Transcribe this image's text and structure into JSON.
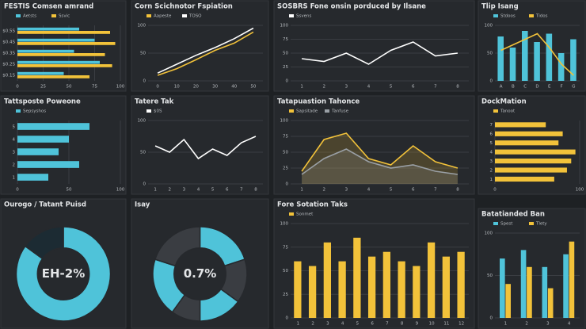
{
  "chart_data": [
    {
      "type": "hbar",
      "title": "FESTIS Comsen amrand",
      "categories": [
        "$0.5S",
        "$0.4S",
        "$0.3S",
        "$0.2S",
        "$0.1S"
      ],
      "series": [
        {
          "name": "Aetsts",
          "color": "#4fc3d9",
          "values": [
            60,
            75,
            55,
            80,
            45
          ]
        },
        {
          "name": "Ssvic",
          "color": "#f2c23a",
          "values": [
            90,
            95,
            85,
            92,
            70
          ]
        }
      ],
      "xlim": [
        0,
        100
      ],
      "xticks": [
        0,
        25,
        50,
        75,
        100
      ]
    },
    {
      "type": "line",
      "title": "Corn Scichnotor Fspiation",
      "categories": [
        "0",
        "10",
        "20",
        "30",
        "40",
        "50"
      ],
      "series": [
        {
          "name": "Aapeste",
          "color": "#f2c23a",
          "values": [
            10,
            22,
            38,
            55,
            68,
            88
          ]
        },
        {
          "name": "TOSO",
          "color": "#ffffff",
          "values": [
            14,
            30,
            46,
            60,
            76,
            95
          ]
        }
      ],
      "ylim": [
        0,
        100
      ],
      "yticks": [
        0,
        50,
        100
      ]
    },
    {
      "type": "line",
      "title": "SOSBRS Fone onsin porduced by Ilsane",
      "categories": [
        "1",
        "2",
        "3",
        "4",
        "5",
        "6",
        "7",
        "8"
      ],
      "series": [
        {
          "name": "Ssvens",
          "color": "#ffffff",
          "values": [
            40,
            35,
            50,
            30,
            55,
            70,
            45,
            50
          ]
        }
      ],
      "ylim": [
        0,
        100
      ],
      "yticks": [
        0,
        25,
        50,
        75,
        100
      ]
    },
    {
      "type": "bar",
      "title": "Tlip Isang",
      "categories": [
        "A",
        "B",
        "C",
        "D",
        "E",
        "F",
        "G"
      ],
      "series": [
        {
          "name": "Stdoos",
          "color": "#4fc3d9",
          "values": [
            80,
            60,
            90,
            70,
            85,
            50,
            75
          ]
        },
        {
          "name": "Tidos",
          "color": "#f2c23a",
          "style": "line",
          "values": [
            55,
            65,
            75,
            85,
            60,
            30,
            10
          ]
        }
      ],
      "ylim": [
        0,
        100
      ],
      "yticks": [
        0,
        50,
        100
      ]
    },
    {
      "type": "hbar",
      "title": "Tattsposte Poweone",
      "categories": [
        "5",
        "4",
        "3",
        "2",
        "1"
      ],
      "series": [
        {
          "name": "Sepsyshos",
          "color": "#4fc3d9",
          "values": [
            70,
            50,
            40,
            60,
            30
          ]
        }
      ],
      "xlim": [
        0,
        100
      ],
      "xticks": [
        0,
        50,
        100
      ]
    },
    {
      "type": "line",
      "title": "Tatere Tak",
      "categories": [
        "1",
        "2",
        "3",
        "4",
        "5",
        "6",
        "7",
        "8"
      ],
      "series": [
        {
          "name": "$0S",
          "color": "#ffffff",
          "values": [
            60,
            50,
            70,
            40,
            55,
            45,
            65,
            75
          ]
        }
      ],
      "ylim": [
        0,
        100
      ],
      "yticks": [
        0,
        50,
        100
      ]
    },
    {
      "type": "area",
      "title": "Tatapuastion Tahonce",
      "categories": [
        "1",
        "2",
        "3",
        "4",
        "5",
        "6",
        "7",
        "8"
      ],
      "series": [
        {
          "name": "Sapsitade",
          "color": "#f2c23a",
          "values": [
            20,
            70,
            80,
            40,
            30,
            60,
            35,
            25
          ]
        },
        {
          "name": "Tanfuse",
          "color": "#9aa0a6",
          "values": [
            15,
            40,
            55,
            35,
            25,
            30,
            20,
            15
          ]
        }
      ],
      "ylim": [
        0,
        100
      ],
      "yticks": [
        0,
        25,
        50,
        75,
        100
      ]
    },
    {
      "type": "hbar",
      "title": "DockMation",
      "categories": [
        "7",
        "6",
        "5",
        "4",
        "3",
        "2",
        "1"
      ],
      "series": [
        {
          "name": "Tanoot",
          "color": "#f2c23a",
          "values": [
            60,
            80,
            75,
            95,
            90,
            85,
            70
          ]
        }
      ],
      "xlim": [
        0,
        100
      ],
      "xticks": [
        0,
        100
      ]
    },
    {
      "type": "donut",
      "title": "Ourogo / Tatant Puisd",
      "center": "EH-2%",
      "values": [
        85,
        15
      ],
      "colors": [
        "#4fc3d9",
        "#1c2b33"
      ]
    },
    {
      "type": "donut",
      "title": "Isay",
      "center": "0.7%",
      "values": [
        20,
        15,
        15,
        10,
        20,
        20
      ],
      "colors": [
        "#4fc3d9",
        "#3a3d42",
        "#4fc3d9",
        "#3a3d42",
        "#4fc3d9",
        "#3a3d42"
      ]
    },
    {
      "type": "bar",
      "title": "Fore Sotation Taks",
      "categories": [
        "1",
        "2",
        "3",
        "4",
        "5",
        "6",
        "7",
        "8",
        "9",
        "10",
        "11",
        "12"
      ],
      "series": [
        {
          "name": "Sonmet",
          "color": "#f2c23a",
          "values": [
            60,
            55,
            80,
            60,
            85,
            65,
            70,
            60,
            55,
            80,
            65,
            70
          ]
        }
      ],
      "ylim": [
        0,
        100
      ],
      "yticks": [
        0,
        25,
        50,
        75,
        100
      ]
    },
    {
      "type": "bar",
      "title": "Batatianded Ban",
      "categories": [
        "1",
        "2",
        "3",
        "4"
      ],
      "series": [
        {
          "name": "Spest",
          "color": "#4fc3d9",
          "values": [
            70,
            80,
            60,
            75
          ]
        },
        {
          "name": "Tlety",
          "color": "#f2c23a",
          "values": [
            40,
            60,
            35,
            90
          ]
        }
      ],
      "ylim": [
        0,
        100
      ],
      "yticks": [
        0,
        50,
        100
      ]
    }
  ]
}
